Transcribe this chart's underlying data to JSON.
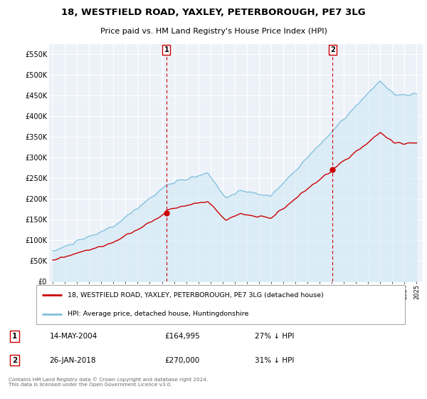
{
  "title": "18, WESTFIELD ROAD, YAXLEY, PETERBOROUGH, PE7 3LG",
  "subtitle": "Price paid vs. HM Land Registry's House Price Index (HPI)",
  "ytick_values": [
    0,
    50000,
    100000,
    150000,
    200000,
    250000,
    300000,
    350000,
    400000,
    450000,
    500000,
    550000
  ],
  "ylim": [
    0,
    575000
  ],
  "xlim_start": 1994.7,
  "xlim_end": 2025.5,
  "hpi_color": "#7fbfdc",
  "hpi_fill_color": "#d0e8f5",
  "price_color": "#cc0000",
  "marker1_x": 2004.37,
  "marker1_y": 164995,
  "marker1_label": "1",
  "marker1_date": "14-MAY-2004",
  "marker1_price": "£164,995",
  "marker1_note": "27% ↓ HPI",
  "marker2_x": 2018.07,
  "marker2_y": 270000,
  "marker2_label": "2",
  "marker2_date": "26-JAN-2018",
  "marker2_price": "£270,000",
  "marker2_note": "31% ↓ HPI",
  "legend_line1": "18, WESTFIELD ROAD, YAXLEY, PETERBOROUGH, PE7 3LG (detached house)",
  "legend_line2": "HPI: Average price, detached house, Huntingdonshire",
  "footer": "Contains HM Land Registry data © Crown copyright and database right 2024.\nThis data is licensed under the Open Government Licence v3.0.",
  "background_color": "#ffffff",
  "plot_bg_color": "#edf2f9",
  "grid_color": "#ffffff"
}
